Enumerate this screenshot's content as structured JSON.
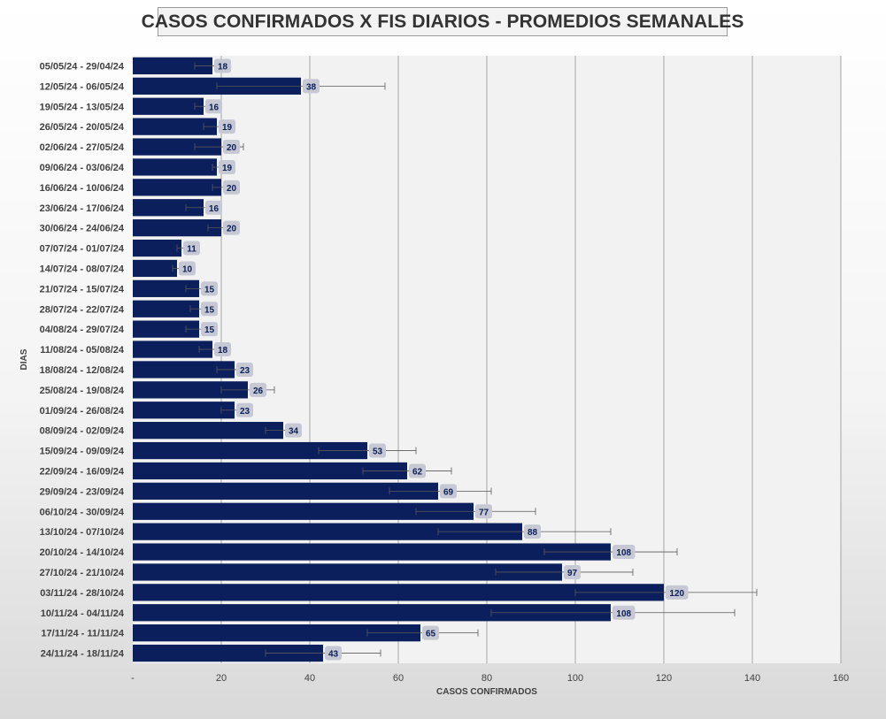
{
  "chart_data": {
    "type": "bar",
    "orientation": "horizontal",
    "title": "CASOS CONFIRMADOS X FIS DIARIOS - PROMEDIOS SEMANALES",
    "xlabel": "CASOS CONFIRMADOS",
    "ylabel": "DIAS",
    "xlim": [
      0,
      160
    ],
    "x_ticks": [
      "-",
      "20",
      "40",
      "60",
      "80",
      "100",
      "120",
      "140",
      "160"
    ],
    "x_tick_values": [
      0,
      20,
      40,
      60,
      80,
      100,
      120,
      140,
      160
    ],
    "grid": "vertical",
    "legend": "none",
    "bar_color": "#0b1f5c",
    "categories": [
      "05/05/24 - 29/04/24",
      "12/05/24 - 06/05/24",
      "19/05/24 - 13/05/24",
      "26/05/24 - 20/05/24",
      "02/06/24 - 27/05/24",
      "09/06/24 - 03/06/24",
      "16/06/24 - 10/06/24",
      "23/06/24 - 17/06/24",
      "30/06/24 - 24/06/24",
      "07/07/24 - 01/07/24",
      "14/07/24 - 08/07/24",
      "21/07/24 - 15/07/24",
      "28/07/24 - 22/07/24",
      "04/08/24 - 29/07/24",
      "11/08/24 - 05/08/24",
      "18/08/24 - 12/08/24",
      "25/08/24 - 19/08/24",
      "01/09/24 - 26/08/24",
      "08/09/24 - 02/09/24",
      "15/09/24 - 09/09/24",
      "22/09/24 - 16/09/24",
      "29/09/24 - 23/09/24",
      "06/10/24 - 30/09/24",
      "13/10/24 - 07/10/24",
      "20/10/24 - 14/10/24",
      "27/10/24 - 21/10/24",
      "03/11/24 - 28/10/24",
      "10/11/24 - 04/11/24",
      "17/11/24 - 11/11/24",
      "24/11/24 - 18/11/24"
    ],
    "values": [
      18,
      38,
      16,
      19,
      20,
      19,
      20,
      16,
      20,
      11,
      10,
      15,
      15,
      15,
      18,
      23,
      26,
      23,
      34,
      53,
      62,
      69,
      77,
      88,
      108,
      97,
      120,
      108,
      65,
      43
    ],
    "error_bars": [
      [
        14,
        21
      ],
      [
        19,
        57
      ],
      [
        14,
        18
      ],
      [
        16,
        22
      ],
      [
        14,
        25
      ],
      [
        18,
        21
      ],
      [
        18,
        23
      ],
      [
        12,
        20
      ],
      [
        17,
        22
      ],
      [
        10,
        12
      ],
      [
        9,
        12
      ],
      [
        12,
        17
      ],
      [
        13,
        16
      ],
      [
        12,
        16
      ],
      [
        15,
        20
      ],
      [
        19,
        26
      ],
      [
        20,
        32
      ],
      [
        20,
        25
      ],
      [
        30,
        37
      ],
      [
        42,
        64
      ],
      [
        52,
        72
      ],
      [
        58,
        81
      ],
      [
        64,
        91
      ],
      [
        69,
        108
      ],
      [
        93,
        123
      ],
      [
        82,
        113
      ],
      [
        100,
        141
      ],
      [
        81,
        136
      ],
      [
        53,
        78
      ],
      [
        30,
        56
      ]
    ],
    "data_labels": [
      "18",
      "38",
      "16",
      "19",
      "20",
      "19",
      "20",
      "16",
      "20",
      "11",
      "10",
      "15",
      "15",
      "15",
      "18",
      "23",
      "26",
      "23",
      "34",
      "53",
      "62",
      "69",
      "77",
      "88",
      "108",
      "97",
      "120",
      "108",
      "65",
      "43"
    ]
  }
}
